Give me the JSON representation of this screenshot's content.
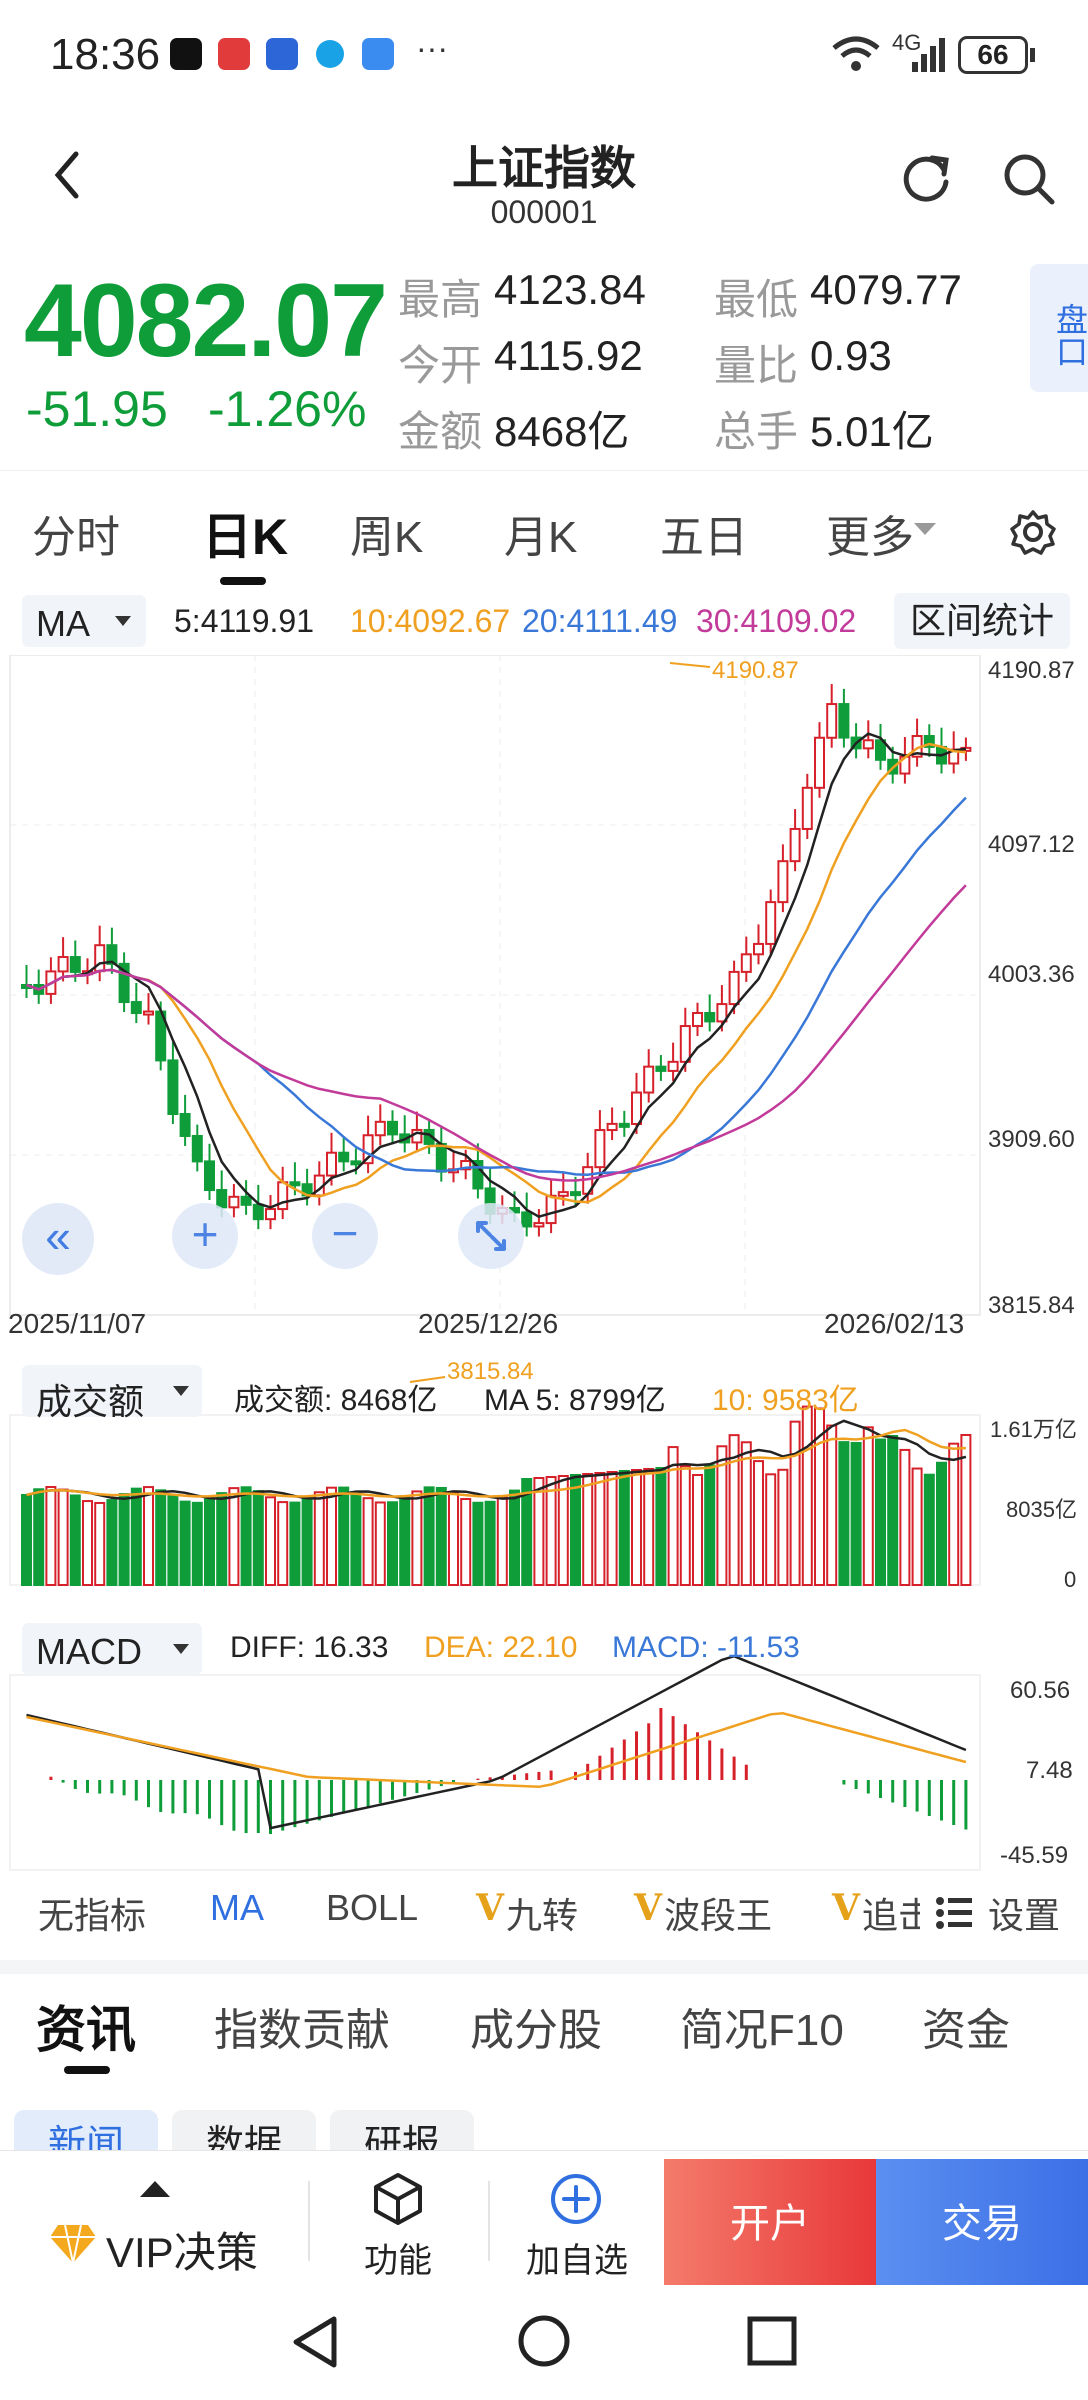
{
  "status_bar": {
    "time": "18:36",
    "more": "···",
    "network": "4G",
    "battery": "66"
  },
  "header": {
    "title": "上证指数",
    "code": "000001"
  },
  "quote": {
    "price": "4082.07",
    "change": "-51.95",
    "change_pct": "-1.26%",
    "high_label": "最高",
    "high": "4123.84",
    "low_label": "最低",
    "low": "4079.77",
    "open_label": "今开",
    "open": "4115.92",
    "ratio_label": "量比",
    "ratio": "0.93",
    "amount_label": "金额",
    "amount": "8468亿",
    "hands_label": "总手",
    "hands": "5.01亿",
    "side_button": "盘口"
  },
  "period_tabs": [
    "分时",
    "日K",
    "周K",
    "月K",
    "五日",
    "更多"
  ],
  "ma_bar": {
    "selector": "MA",
    "ma5": "5:4119.91",
    "ma10": "10:4092.67",
    "ma20": "20:4111.49",
    "ma30": "30:4109.02",
    "stats_button": "区间统计"
  },
  "kline": {
    "y_ticks": [
      "4190.87",
      "4097.12",
      "4003.36",
      "3909.60",
      "3815.84"
    ],
    "high_marker": "4190.87",
    "low_marker": "3815.84",
    "dates": [
      "2025/11/07",
      "2025/12/26",
      "2026/02/13"
    ]
  },
  "volume_bar": {
    "selector": "成交额",
    "amount": "成交额: 8468亿",
    "ma5": "MA 5: 8799亿",
    "ma10": "10: 9583亿",
    "y_ticks": [
      "1.61万亿",
      "8035亿",
      "0"
    ]
  },
  "macd_bar": {
    "selector": "MACD",
    "diff": "DIFF: 16.33",
    "dea": "DEA: 22.10",
    "macd": "MACD: -11.53",
    "y_ticks": [
      "60.56",
      "7.48",
      "-45.59"
    ]
  },
  "indicator_tabs": [
    "无指标",
    "MA",
    "BOLL",
    "九转",
    "波段王",
    "追击",
    "设置"
  ],
  "bottom_tabs": [
    "资讯",
    "指数贡献",
    "成分股",
    "简况F10",
    "资金"
  ],
  "sub_tabs": [
    "新闻",
    "数据",
    "研报"
  ],
  "actions": {
    "vip": "VIP决策",
    "func": "功能",
    "add": "加自选",
    "open": "开户",
    "trade": "交易"
  },
  "colors": {
    "up": "#d6202a",
    "down": "#0f9d3a",
    "ma5": "#222222",
    "ma10": "#f0a020",
    "ma20": "#3a78d8",
    "ma30": "#c23a9a",
    "accent": "#2f6fe0"
  }
}
